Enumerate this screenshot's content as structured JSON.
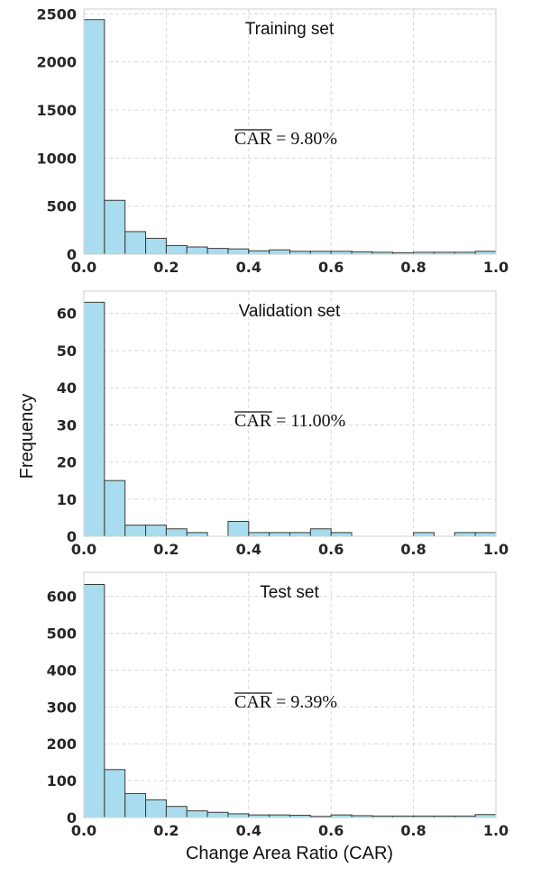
{
  "chart_data": [
    {
      "type": "bar",
      "title": "Training set",
      "annotation": {
        "label": "CAR",
        "text": " = 9.80%"
      },
      "xlim": [
        0.0,
        1.0
      ],
      "ylim": [
        0,
        2550
      ],
      "xticks": [
        "0.0",
        "0.2",
        "0.4",
        "0.6",
        "0.8",
        "1.0"
      ],
      "yticks": [
        0,
        500,
        1000,
        1500,
        2000,
        2500
      ],
      "bin_edges": [
        0.0,
        0.05,
        0.1,
        0.15,
        0.2,
        0.25,
        0.3,
        0.35,
        0.4,
        0.45,
        0.5,
        0.55,
        0.6,
        0.65,
        0.7,
        0.75,
        0.8,
        0.85,
        0.9,
        0.95,
        1.0
      ],
      "values": [
        2440,
        560,
        235,
        165,
        90,
        75,
        60,
        55,
        35,
        45,
        30,
        30,
        30,
        25,
        20,
        15,
        20,
        20,
        20,
        30
      ]
    },
    {
      "type": "bar",
      "title": "Validation set",
      "annotation": {
        "label": "CAR",
        "text": " = 11.00%"
      },
      "xlim": [
        0.0,
        1.0
      ],
      "ylim": [
        0,
        66
      ],
      "xticks": [
        "0.0",
        "0.2",
        "0.4",
        "0.6",
        "0.8",
        "1.0"
      ],
      "yticks": [
        0,
        10,
        20,
        30,
        40,
        50,
        60
      ],
      "bin_edges": [
        0.0,
        0.05,
        0.1,
        0.15,
        0.2,
        0.25,
        0.3,
        0.35,
        0.4,
        0.45,
        0.5,
        0.55,
        0.6,
        0.65,
        0.7,
        0.75,
        0.8,
        0.85,
        0.9,
        0.95,
        1.0
      ],
      "values": [
        63,
        15,
        3,
        3,
        2,
        1,
        0,
        4,
        1,
        1,
        1,
        2,
        1,
        0,
        0,
        0,
        1,
        0,
        1,
        1
      ]
    },
    {
      "type": "bar",
      "title": "Test set",
      "annotation": {
        "label": "CAR",
        "text": " = 9.39%"
      },
      "xlim": [
        0.0,
        1.0
      ],
      "ylim": [
        0,
        665
      ],
      "xticks": [
        "0.0",
        "0.2",
        "0.4",
        "0.6",
        "0.8",
        "1.0"
      ],
      "yticks": [
        0,
        100,
        200,
        300,
        400,
        500,
        600
      ],
      "bin_edges": [
        0.0,
        0.05,
        0.1,
        0.15,
        0.2,
        0.25,
        0.3,
        0.35,
        0.4,
        0.45,
        0.5,
        0.55,
        0.6,
        0.65,
        0.7,
        0.75,
        0.8,
        0.85,
        0.9,
        0.95,
        1.0
      ],
      "values": [
        632,
        130,
        65,
        48,
        30,
        18,
        14,
        10,
        7,
        7,
        6,
        3,
        7,
        5,
        4,
        4,
        4,
        4,
        4,
        8
      ]
    }
  ],
  "ylabel": "Frequency",
  "xlabel": "Change Area Ratio (CAR)",
  "bar_color": "#a8dcee",
  "edge_color": "#3a3a3a",
  "grid": true
}
